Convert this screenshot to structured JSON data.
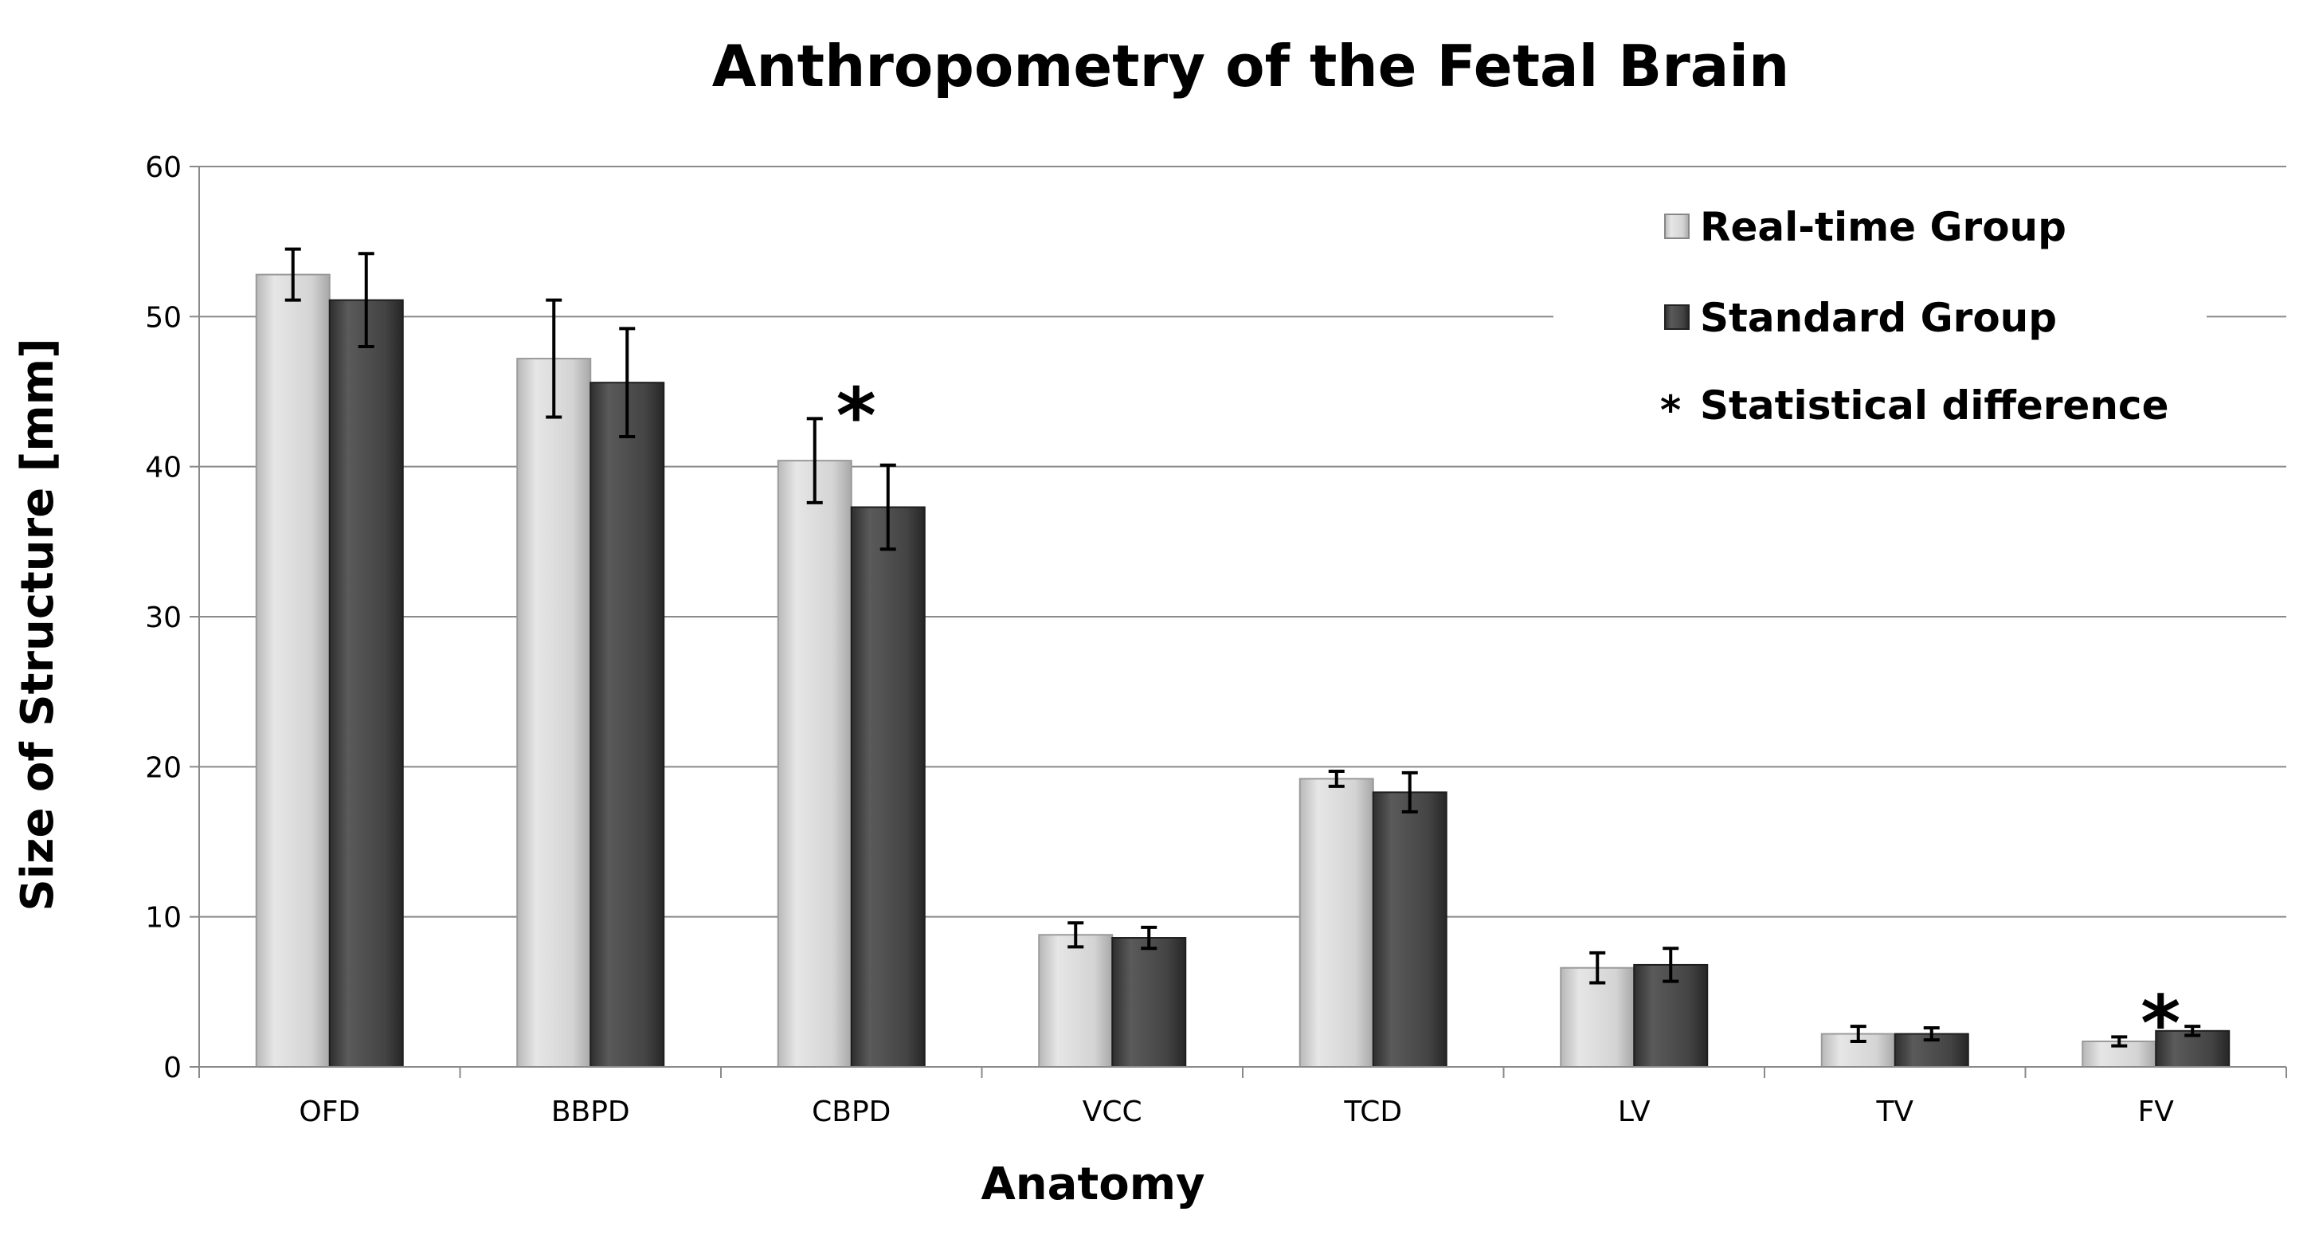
{
  "chart_data": {
    "type": "bar",
    "title": "Anthropometry of the Fetal Brain",
    "xlabel": "Anatomy",
    "ylabel": "Size of Structure [mm]",
    "ylim": [
      0,
      60
    ],
    "yticks": [
      0,
      10,
      20,
      30,
      40,
      50,
      60
    ],
    "grid": true,
    "legend_position": "top-right",
    "categories": [
      "OFD",
      "BBPD",
      "CBPD",
      "VCC",
      "TCD",
      "LV",
      "TV",
      "FV"
    ],
    "series": [
      {
        "name": "Real-time Group",
        "color": "#c8c8c8",
        "values": [
          52.8,
          47.2,
          40.4,
          8.8,
          19.2,
          6.6,
          2.2,
          1.7
        ],
        "errors": [
          1.7,
          3.9,
          2.8,
          0.8,
          0.5,
          1.0,
          0.5,
          0.3
        ]
      },
      {
        "name": "Standard Group",
        "color": "#404040",
        "values": [
          51.1,
          45.6,
          37.3,
          8.6,
          18.3,
          6.8,
          2.2,
          2.4
        ],
        "errors": [
          3.1,
          3.6,
          2.8,
          0.7,
          1.3,
          1.1,
          0.4,
          0.3
        ]
      }
    ],
    "significance_marker": "*",
    "significant_categories": [
      "CBPD",
      "FV"
    ],
    "legend": {
      "items": [
        "Real-time Group",
        "Standard Group"
      ],
      "note_symbol": "*",
      "note_text": "Statistical difference"
    }
  }
}
